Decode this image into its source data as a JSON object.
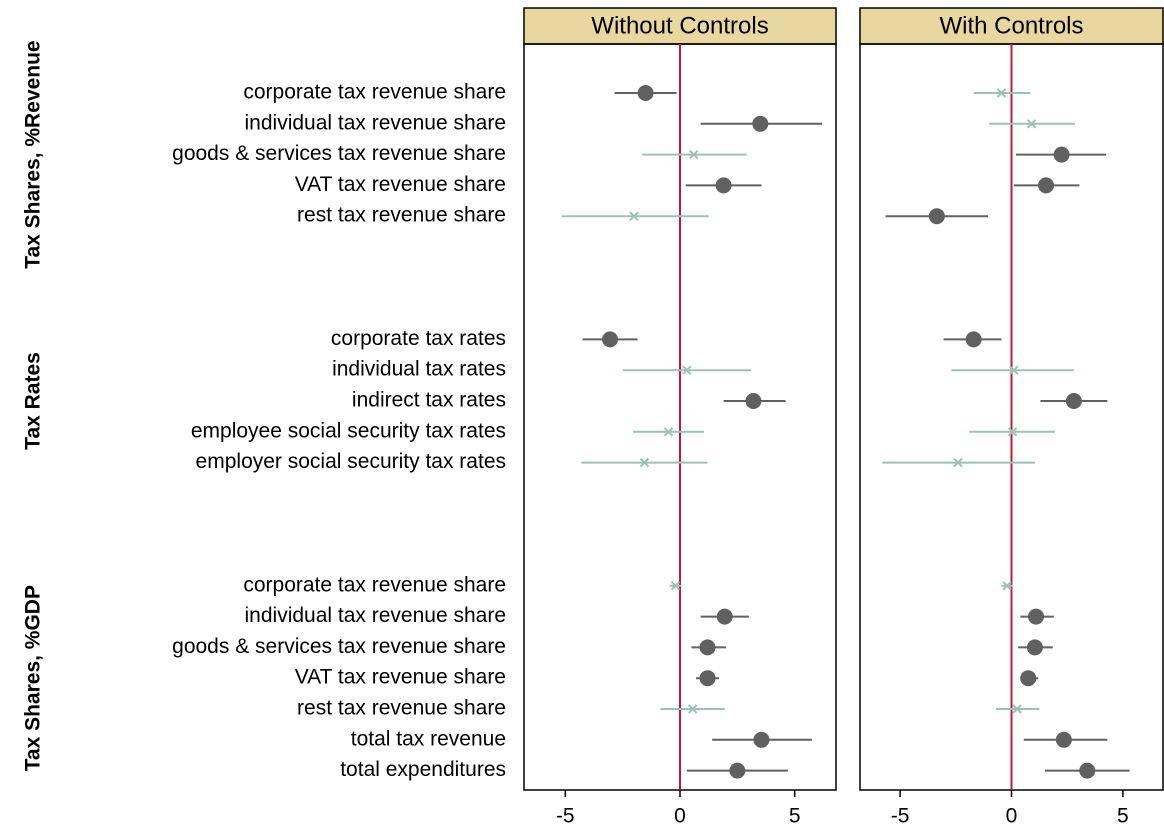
{
  "chart_data": {
    "type": "coefplot",
    "groups": [
      "Tax Shares, %Revenue",
      "Tax Rates",
      "Tax Shares, %GDP"
    ],
    "categories": [
      "corporate tax revenue share",
      "individual tax revenue share",
      "goods & services tax revenue share",
      "VAT tax revenue share",
      "rest tax revenue share",
      null,
      null,
      null,
      "corporate tax rates",
      "individual tax rates",
      "indirect tax rates",
      "employee social security tax rates",
      "employer social security tax rates",
      null,
      null,
      null,
      "corporate tax revenue share",
      "individual tax revenue share",
      "goods & services tax revenue share",
      "VAT tax revenue share",
      "rest tax revenue share",
      "total tax revenue",
      "total expenditures"
    ],
    "xlim": [
      -6.8,
      6.8
    ],
    "xticks": [
      -5,
      0,
      5
    ],
    "reference_x": 0,
    "reference_color": "#c0193a",
    "significant_color": "#606060",
    "insignificant_color": "#9cc2b7",
    "panels": [
      {
        "title": "Without Controls",
        "values": [
          -1.5,
          3.5,
          0.6,
          1.9,
          -2.0,
          null,
          null,
          null,
          -3.05,
          0.3,
          3.2,
          -0.5,
          -1.55,
          null,
          null,
          null,
          -0.2,
          1.95,
          1.2,
          1.2,
          0.55,
          3.55,
          2.5
        ],
        "lower": [
          -2.85,
          0.9,
          -1.65,
          0.25,
          -5.15,
          null,
          null,
          null,
          -4.25,
          -2.5,
          1.9,
          -2.05,
          -4.3,
          null,
          null,
          null,
          -0.45,
          0.9,
          0.5,
          0.7,
          -0.85,
          1.4,
          0.3
        ],
        "upper": [
          -0.15,
          6.2,
          2.9,
          3.55,
          1.25,
          null,
          null,
          null,
          -1.85,
          3.1,
          4.6,
          1.05,
          1.2,
          null,
          null,
          null,
          0.05,
          3.0,
          2.0,
          1.7,
          1.95,
          5.75,
          4.7
        ],
        "significant": [
          true,
          true,
          false,
          true,
          false,
          null,
          null,
          null,
          true,
          false,
          true,
          false,
          false,
          null,
          null,
          null,
          false,
          true,
          true,
          true,
          false,
          true,
          true
        ]
      },
      {
        "title": "With Controls",
        "values": [
          -0.45,
          0.9,
          2.25,
          1.55,
          -3.35,
          null,
          null,
          null,
          -1.7,
          0.1,
          2.8,
          0.05,
          -2.4,
          null,
          null,
          null,
          -0.2,
          1.1,
          1.05,
          0.75,
          0.25,
          2.35,
          3.4
        ],
        "lower": [
          -1.7,
          -1.0,
          0.2,
          0.1,
          -5.65,
          null,
          null,
          null,
          -3.05,
          -2.7,
          1.3,
          -1.9,
          -5.8,
          null,
          null,
          null,
          -0.45,
          0.4,
          0.3,
          0.45,
          -0.7,
          0.55,
          1.5
        ],
        "upper": [
          0.85,
          2.85,
          4.25,
          3.05,
          -1.05,
          null,
          null,
          null,
          -0.45,
          2.8,
          4.3,
          1.95,
          1.05,
          null,
          null,
          null,
          0.05,
          1.9,
          1.85,
          1.2,
          1.25,
          4.3,
          5.3
        ],
        "significant": [
          false,
          false,
          true,
          true,
          true,
          null,
          null,
          null,
          true,
          false,
          true,
          false,
          false,
          null,
          null,
          null,
          false,
          true,
          true,
          true,
          false,
          true,
          true
        ]
      }
    ]
  }
}
